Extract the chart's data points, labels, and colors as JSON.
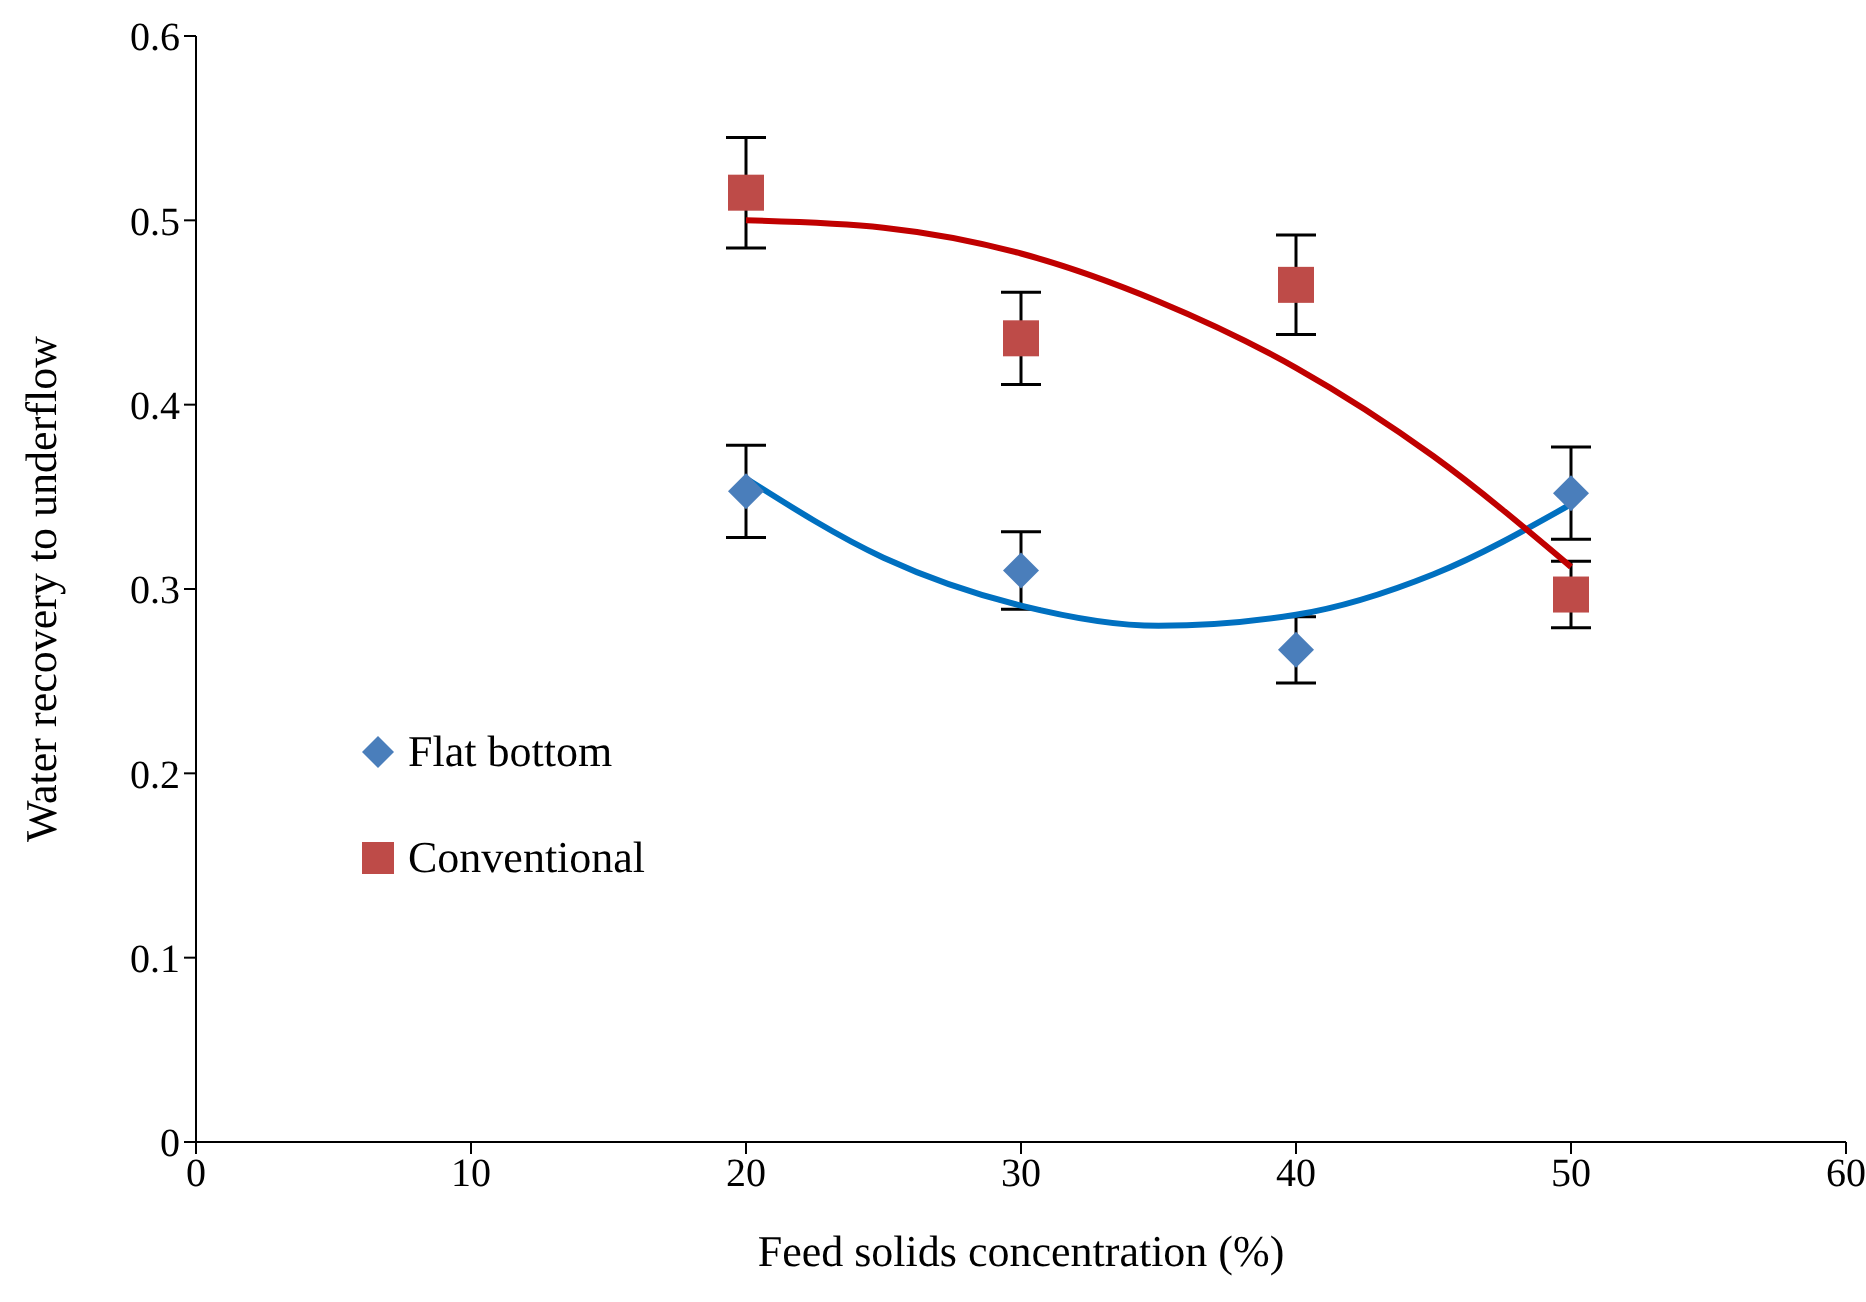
{
  "chart_data": {
    "type": "scatter",
    "xlabel": "Feed solids concentration (%)",
    "ylabel": "Water recovery to underflow",
    "xlim": [
      0,
      60
    ],
    "xticks": [
      0,
      10,
      20,
      30,
      40,
      50,
      60
    ],
    "ylim": [
      0,
      0.6
    ],
    "yticks": [
      0,
      0.1,
      0.2,
      0.3,
      0.4,
      0.5,
      0.6
    ],
    "grid": false,
    "legend": "left",
    "x": [
      20,
      30,
      40,
      50
    ],
    "series": [
      {
        "name": "Flat bottom",
        "color": "#4a7ebb",
        "marker": "diamond",
        "values": [
          0.353,
          0.31,
          0.267,
          0.352
        ],
        "errors": [
          0.025,
          0.021,
          0.018,
          0.025
        ]
      },
      {
        "name": "Conventional",
        "color": "#be4b48",
        "marker": "square",
        "values": [
          0.515,
          0.436,
          0.465,
          0.297
        ],
        "errors": [
          0.03,
          0.025,
          0.027,
          0.018
        ]
      },
      {
        "type": "line",
        "color": "#0070c0",
        "marker": "none",
        "x": [
          20,
          25,
          30,
          35,
          40,
          45,
          50
        ],
        "values": [
          0.36,
          0.317,
          0.291,
          0.28,
          0.286,
          0.308,
          0.346
        ]
      },
      {
        "type": "line",
        "color": "#c00000",
        "marker": "none",
        "x": [
          20,
          25,
          30,
          35,
          40,
          45,
          50
        ],
        "values": [
          0.5,
          0.496,
          0.482,
          0.456,
          0.42,
          0.372,
          0.312
        ]
      }
    ]
  }
}
